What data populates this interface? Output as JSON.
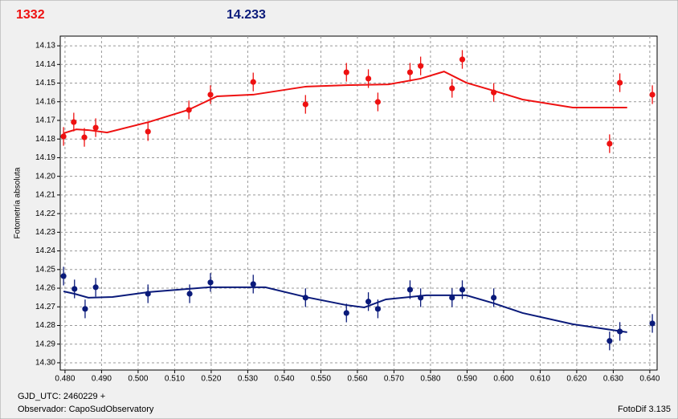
{
  "chart_data": {
    "type": "scatter",
    "ylabel": "Fotometría absoluta",
    "xlabel": "GJD_UTC: 2460229 +",
    "xlim": [
      0.4787,
      0.642
    ],
    "ylim": [
      14.3039,
      14.1248
    ],
    "xticks": [
      {
        "value": 0.48,
        "label": "0.480"
      },
      {
        "value": 0.49,
        "label": "0.490"
      },
      {
        "value": 0.5,
        "label": "0.500"
      },
      {
        "value": 0.51,
        "label": "0.510"
      },
      {
        "value": 0.52,
        "label": "0.520"
      },
      {
        "value": 0.53,
        "label": "0.530"
      },
      {
        "value": 0.54,
        "label": "0.540"
      },
      {
        "value": 0.55,
        "label": "0.550"
      },
      {
        "value": 0.56,
        "label": "0.560"
      },
      {
        "value": 0.57,
        "label": "0.570"
      },
      {
        "value": 0.58,
        "label": "0.580"
      },
      {
        "value": 0.59,
        "label": "0.590"
      },
      {
        "value": 0.6,
        "label": "0.600"
      },
      {
        "value": 0.61,
        "label": "0.610"
      },
      {
        "value": 0.62,
        "label": "0.620"
      },
      {
        "value": 0.63,
        "label": "0.630"
      },
      {
        "value": 0.64,
        "label": "0.640"
      }
    ],
    "yticks": [
      14.13,
      14.14,
      14.15,
      14.16,
      14.17,
      14.18,
      14.19,
      {
        "value": 14.2,
        "label": "14.20"
      },
      14.21,
      14.22,
      14.23,
      14.24,
      14.25,
      14.26,
      14.27,
      14.28,
      14.29,
      {
        "value": 14.3,
        "label": "14.30"
      }
    ],
    "grid": true,
    "series": [
      {
        "name": "1332",
        "color": "#ee1111",
        "x": [
          0.4796,
          0.4824,
          0.4853,
          0.4884,
          0.5027,
          0.5139,
          0.5198,
          0.5315,
          0.5458,
          0.557,
          0.563,
          0.5656,
          0.5744,
          0.5773,
          0.5859,
          0.5887,
          0.5973,
          0.629,
          0.6318,
          0.6407
        ],
        "values": [
          14.1786,
          14.1709,
          14.1791,
          14.1739,
          14.176,
          14.1644,
          14.1562,
          14.1494,
          14.1614,
          14.1442,
          14.1476,
          14.1601,
          14.1442,
          14.1408,
          14.1528,
          14.1373,
          14.155,
          14.1825,
          14.1498,
          14.1562
        ],
        "errors": [
          0.005,
          0.005,
          0.005,
          0.005,
          0.005,
          0.005,
          0.005,
          0.005,
          0.005,
          0.005,
          0.005,
          0.005,
          0.005,
          0.005,
          0.005,
          0.005,
          0.005,
          0.005,
          0.005,
          0.005
        ],
        "fit_x": [
          0.4796,
          0.4831,
          0.4864,
          0.4915,
          0.5029,
          0.5137,
          0.5216,
          0.5315,
          0.5458,
          0.5568,
          0.5685,
          0.5773,
          0.5837,
          0.5898,
          0.5973,
          0.6052,
          0.6189,
          0.6338
        ],
        "fit_values": [
          14.1769,
          14.1748,
          14.1752,
          14.1765,
          14.1709,
          14.1644,
          14.1571,
          14.1562,
          14.1519,
          14.1511,
          14.1507,
          14.1476,
          14.1438,
          14.1498,
          14.1541,
          14.1588,
          14.1631,
          14.1631
        ]
      },
      {
        "name": "14.233",
        "color": "#0a1a7a",
        "x": [
          0.4796,
          0.4826,
          0.4855,
          0.4884,
          0.5027,
          0.5141,
          0.5198,
          0.5315,
          0.5458,
          0.557,
          0.563,
          0.5656,
          0.5744,
          0.5773,
          0.5859,
          0.5887,
          0.5973,
          0.629,
          0.6318,
          0.6407
        ],
        "values": [
          14.2535,
          14.2604,
          14.2711,
          14.2595,
          14.263,
          14.263,
          14.2569,
          14.2578,
          14.2651,
          14.2733,
          14.2672,
          14.2711,
          14.2608,
          14.2651,
          14.2651,
          14.2608,
          14.2651,
          14.2883,
          14.2832,
          14.2789
        ],
        "errors": [
          0.005,
          0.005,
          0.005,
          0.005,
          0.005,
          0.005,
          0.005,
          0.005,
          0.005,
          0.005,
          0.005,
          0.005,
          0.005,
          0.005,
          0.005,
          0.005,
          0.005,
          0.005,
          0.005,
          0.005
        ],
        "fit_x": [
          0.4796,
          0.4826,
          0.4864,
          0.493,
          0.5029,
          0.5194,
          0.5282,
          0.5348,
          0.5458,
          0.5568,
          0.5619,
          0.5678,
          0.5744,
          0.5788,
          0.5898,
          0.5973,
          0.6052,
          0.6189,
          0.6338
        ],
        "fit_values": [
          14.2617,
          14.263,
          14.2651,
          14.2647,
          14.2621,
          14.2595,
          14.2595,
          14.2595,
          14.2647,
          14.269,
          14.2703,
          14.266,
          14.2647,
          14.2638,
          14.2638,
          14.2681,
          14.2733,
          14.2793,
          14.2836
        ]
      }
    ]
  },
  "footer": {
    "observer": "Observador: CapoSudObservatory",
    "version": "FotoDif 3.135"
  }
}
